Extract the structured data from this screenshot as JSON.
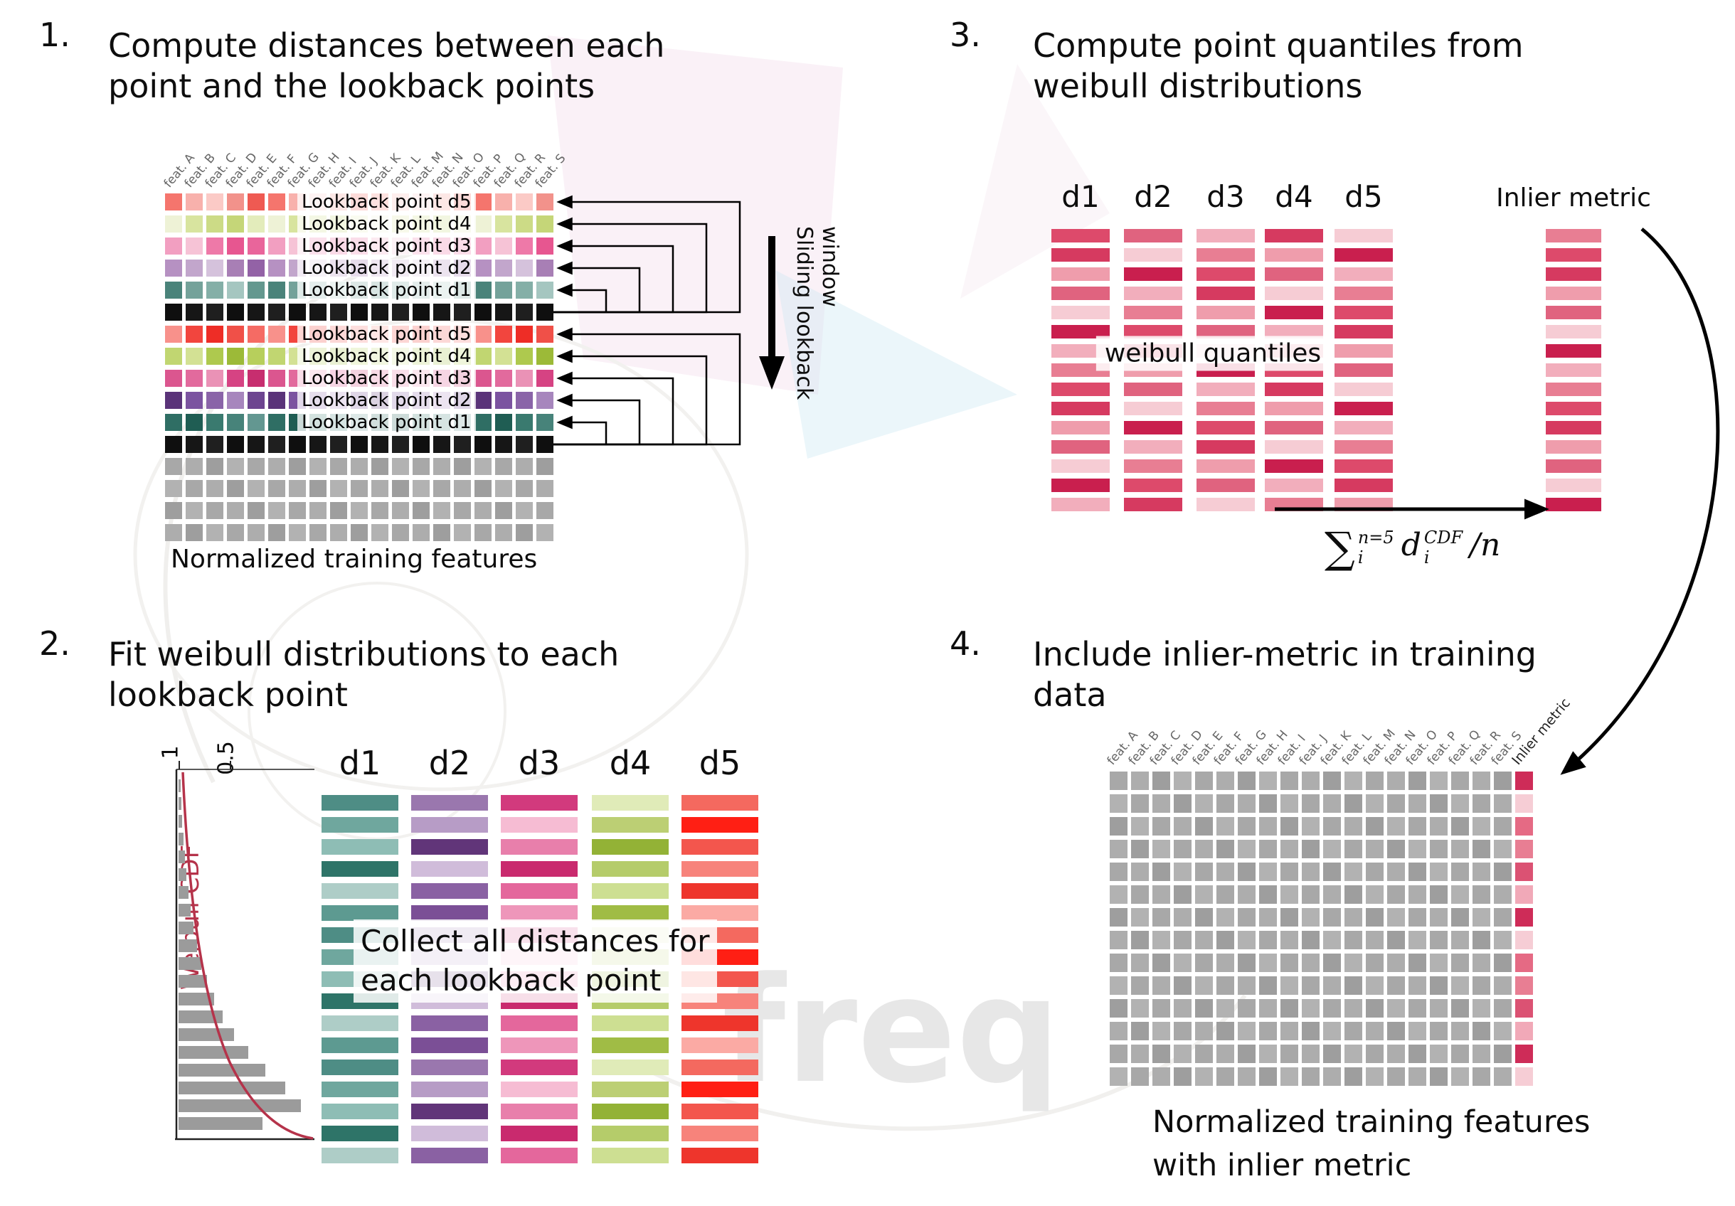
{
  "watermark": {
    "text": "freq"
  },
  "panel1": {
    "number": "1.",
    "title_line1": "Compute distances between each",
    "title_line2": "point and the lookback points",
    "col_headers": [
      "feat. A",
      "feat. B",
      "feat. C",
      "feat. D",
      "feat. E",
      "feat. F",
      "feat. G",
      "feat. H",
      "feat. I",
      "feat. J",
      "feat. K",
      "feat. L",
      "feat. M",
      "feat. N",
      "feat. O",
      "feat. P",
      "feat. Q",
      "feat. R",
      "feat. S"
    ],
    "rows": [
      {
        "label": "Lookback point d5",
        "palette": [
          "#f5756d",
          "#f2928b",
          "#f8b1ac",
          "#ef5a52",
          "#fbcac6"
        ]
      },
      {
        "label": "Lookback point d4",
        "palette": [
          "#d8e49f",
          "#e3ecbb",
          "#ccdb86",
          "#eef2d6",
          "#c5d678"
        ]
      },
      {
        "label": "Lookback point d3",
        "palette": [
          "#ee79a8",
          "#f29fc1",
          "#e75690",
          "#f6c3d6",
          "#e9659b"
        ]
      },
      {
        "label": "Lookback point d2",
        "palette": [
          "#a87fb5",
          "#c2a6cc",
          "#9362a6",
          "#d5c2dc",
          "#b691c2"
        ]
      },
      {
        "label": "Lookback point d1",
        "palette": [
          "#64988f",
          "#84afa7",
          "#4a837a",
          "#a5c6c0",
          "#74a29a"
        ]
      },
      {
        "label": "",
        "palette": [
          "#161616",
          "#1f1f1f",
          "#0f0f0f"
        ]
      },
      {
        "label": "Lookback point d5",
        "palette": [
          "#f2453e",
          "#f56b64",
          "#ee2d26",
          "#f8918b",
          "#f05048"
        ]
      },
      {
        "label": "Lookback point d4",
        "palette": [
          "#aec94e",
          "#c1d671",
          "#9cba38",
          "#d3e194",
          "#b7cf5c"
        ]
      },
      {
        "label": "Lookback point d3",
        "palette": [
          "#d64383",
          "#e26a9d",
          "#c72e6f",
          "#ea92b6",
          "#db568f"
        ]
      },
      {
        "label": "Lookback point d2",
        "palette": [
          "#6d4590",
          "#8a64a8",
          "#5a3379",
          "#a786bd",
          "#7b53a0"
        ]
      },
      {
        "label": "Lookback point d1",
        "palette": [
          "#2f6e64",
          "#47837a",
          "#1f5d53",
          "#639791",
          "#3a7a6f"
        ]
      },
      {
        "label": "",
        "palette": [
          "#161616",
          "#1f1f1f",
          "#0f0f0f"
        ]
      },
      {
        "label": "",
        "palette": [
          "#a8a8a8",
          "#b2b2b2",
          "#9e9e9e",
          "#adadad"
        ]
      },
      {
        "label": "",
        "palette": [
          "#a8a8a8",
          "#b2b2b2",
          "#9e9e9e",
          "#adadad"
        ]
      },
      {
        "label": "",
        "palette": [
          "#a8a8a8",
          "#b2b2b2",
          "#9e9e9e",
          "#adadad"
        ]
      },
      {
        "label": "",
        "palette": [
          "#a8a8a8",
          "#b2b2b2",
          "#9e9e9e",
          "#adadad"
        ]
      }
    ],
    "caption": "Normalized training features",
    "sliding_line1": "Sliding lookback",
    "sliding_line2": "window"
  },
  "panel2": {
    "number": "2.",
    "title_line1": "Fit weibull distributions to each",
    "title_line2": "lookback point",
    "dist_headers": [
      "d1",
      "d2",
      "d3",
      "d4",
      "d5"
    ],
    "bars_per_column": 17,
    "columns": [
      {
        "name": "d1",
        "palette": [
          "#4e8d85",
          "#6fa79e",
          "#8ebdb5",
          "#2e7468",
          "#aecdc7",
          "#5d9a91"
        ]
      },
      {
        "name": "d2",
        "palette": [
          "#7b4f96",
          "#9a77ae",
          "#b79cc6",
          "#613579",
          "#d0bcda",
          "#8a61a3"
        ]
      },
      {
        "name": "d3",
        "palette": [
          "#e4679c",
          "#ee96ba",
          "#d23a7d",
          "#f6bcd3",
          "#e87fab",
          "#c92a6e"
        ]
      },
      {
        "name": "d4",
        "palette": [
          "#b5cc6a",
          "#cddf92",
          "#a0bc45",
          "#e0ebb8",
          "#bccf74",
          "#93b236"
        ]
      },
      {
        "name": "d5",
        "palette": [
          "#f3564d",
          "#f7837b",
          "#ee352c",
          "#fbaaa4",
          "#f4695f",
          "#ff1f14"
        ]
      }
    ],
    "collect_line1": "Collect all distances for",
    "collect_line2": "each lookback point",
    "plot": {
      "ylabel": "Weibull CDF",
      "tick_1": "1",
      "tick_05": "0.5",
      "hist": [
        3,
        4,
        5,
        7,
        9,
        11,
        14,
        17,
        21,
        26,
        32,
        40,
        50,
        62,
        78,
        98,
        122,
        150,
        172,
        118
      ]
    }
  },
  "panel3": {
    "number": "3.",
    "title_line1": "Compute point quantiles from",
    "title_line2": "weibull distributions",
    "dist_headers": [
      "d1",
      "d2",
      "d3",
      "d4",
      "d5"
    ],
    "inlier_header": "Inlier metric",
    "bars_per_column": 15,
    "red_palette": [
      "#dd4a6b",
      "#e87e93",
      "#f2aebc",
      "#c91f4e",
      "#f6ccd4",
      "#e0637f",
      "#ef9dac",
      "#d63a60"
    ],
    "quantiles_label": "weibull quantiles",
    "formula": {
      "sum": "∑",
      "sum_sup": "n=5",
      "sum_sub": "i",
      "var": "d",
      "var_sup": "CDF",
      "var_sub": "i",
      "tail": "/n"
    }
  },
  "panel4": {
    "number": "4.",
    "title_line1": "Include inlier-metric in training",
    "title_line2": "data",
    "col_headers": [
      "feat. A",
      "feat. B",
      "feat. C",
      "feat. D",
      "feat. E",
      "feat. F",
      "feat. G",
      "feat. H",
      "feat. I",
      "feat. J",
      "feat. K",
      "feat. L",
      "feat. M",
      "feat. N",
      "feat. O",
      "feat. P",
      "feat. Q",
      "feat. R",
      "feat. S"
    ],
    "inlier_header": "Inlier metric",
    "rows": 14,
    "gray_palette": [
      "#a8a8a8",
      "#b2b2b2",
      "#9e9e9e",
      "#adadad"
    ],
    "inlier_palette": [
      "#e87e93",
      "#db5273",
      "#f1a9b8",
      "#ce2c58",
      "#f6cdd5",
      "#e56a84"
    ],
    "caption_line1": "Normalized training features",
    "caption_line2": "with inlier metric"
  }
}
